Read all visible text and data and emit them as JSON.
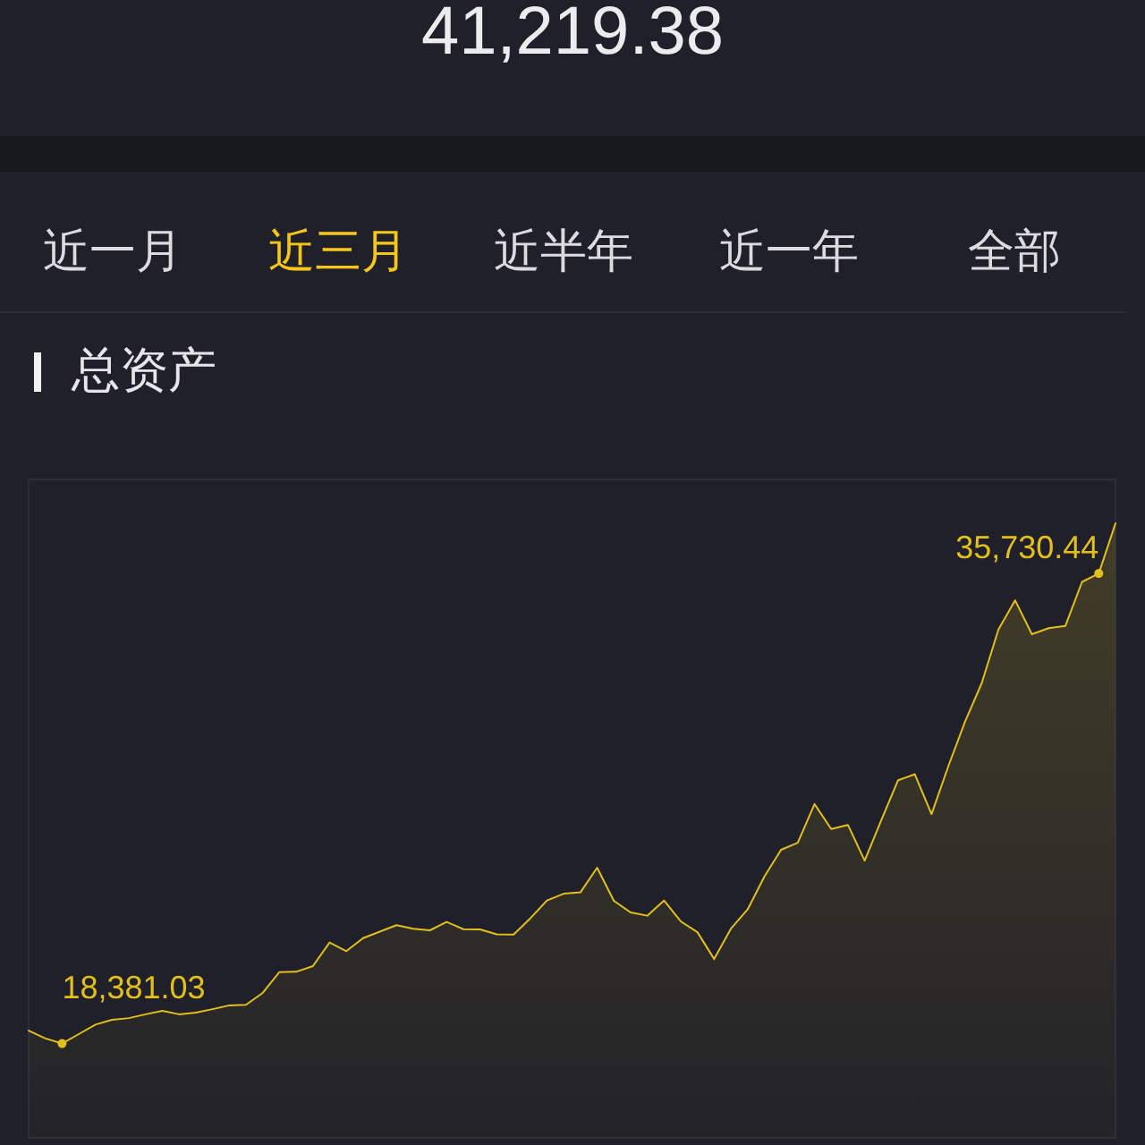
{
  "chart_data": {
    "type": "area",
    "title": "总资产",
    "annotations": [
      "41,219.38",
      "近一月",
      "近三月",
      "近半年",
      "近一年",
      "全部"
    ],
    "categories": [
      null,
      null,
      null,
      null,
      null,
      null,
      null,
      null,
      null,
      null,
      null,
      null,
      null,
      null,
      null,
      null,
      null,
      null,
      null,
      null,
      null,
      null,
      null,
      null,
      null,
      null,
      null,
      null,
      null,
      null,
      null,
      null,
      null,
      null,
      null,
      null,
      null,
      null,
      null,
      null,
      null,
      null,
      null,
      null,
      null,
      null,
      null,
      null,
      null,
      null,
      null,
      null,
      null,
      null,
      null,
      null,
      null,
      null,
      null,
      null,
      null,
      null,
      null,
      null,
      null,
      null
    ],
    "values": [
      18860,
      18570,
      18381.03,
      18730,
      19080,
      19260,
      19320,
      19460,
      19590,
      19460,
      19520,
      19650,
      19790,
      19810,
      20250,
      21020,
      21030,
      21240,
      22110,
      21790,
      22270,
      22510,
      22750,
      22620,
      22560,
      22870,
      22600,
      22590,
      22410,
      22400,
      23000,
      23660,
      23910,
      23960,
      24870,
      23650,
      23220,
      23100,
      23660,
      22890,
      22490,
      21500,
      22620,
      23330,
      24540,
      25530,
      25790,
      27220,
      26300,
      26450,
      25130,
      26630,
      28100,
      28320,
      26850,
      28610,
      30260,
      31680,
      33660,
      34740,
      33490,
      33710,
      33790,
      35420,
      35730.44,
      37580
    ],
    "value_labels": [
      null,
      null,
      "18,381.03",
      null,
      null,
      null,
      null,
      null,
      null,
      null,
      null,
      null,
      null,
      null,
      null,
      null,
      null,
      null,
      null,
      null,
      null,
      null,
      null,
      null,
      null,
      null,
      null,
      null,
      null,
      null,
      null,
      null,
      null,
      null,
      null,
      null,
      null,
      null,
      null,
      null,
      null,
      null,
      null,
      null,
      null,
      null,
      null,
      null,
      null,
      null,
      null,
      null,
      null,
      null,
      null,
      null,
      null,
      null,
      null,
      null,
      null,
      null,
      null,
      null,
      "35,730.44",
      null
    ],
    "color": "#e3bf1d",
    "ylim": [
      14900,
      39200
    ],
    "tick_labels": false
  }
}
